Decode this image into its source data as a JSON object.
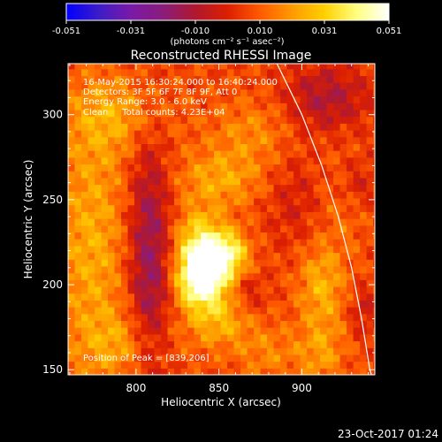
{
  "colorbar": {
    "stops": [
      "#0000ff",
      "#3b1cc8",
      "#7a1aa8",
      "#8a1c7a",
      "#b0182f",
      "#dc1f00",
      "#ff5a00",
      "#ff9a00",
      "#ffd000",
      "#ffff80",
      "#ffffff"
    ],
    "ticks": [
      "-0.051",
      "-0.031",
      "-0.010",
      "0.010",
      "0.031",
      "0.051"
    ],
    "units": "(photons cm⁻² s⁻¹ asec⁻²)"
  },
  "plot": {
    "title": "Reconstructed RHESSI Image",
    "xlabel": "Heliocentric X (arcsec)",
    "ylabel": "Heliocentric Y (arcsec)",
    "info_lines": [
      "16-May-2015 16:30:24.000 to 16:40:24.000",
      "Detectors: 3F 5F 6F 7F 8F 9F, Att 0",
      "Energy Range: 3.0 - 6.0 keV",
      "Clean     Total counts: 4.23E+04"
    ],
    "peak_label": "Position of Peak = [839,206]",
    "timestamp": "23-Oct-2017 01:24"
  },
  "chart_data": {
    "type": "heatmap",
    "title": "Reconstructed RHESSI Image",
    "xlabel": "Heliocentric X (arcsec)",
    "ylabel": "Heliocentric Y (arcsec)",
    "xlim": [
      759,
      944
    ],
    "ylim": [
      147,
      330
    ],
    "xticks": [
      800,
      850,
      900
    ],
    "yticks": [
      150,
      200,
      250,
      300
    ],
    "xtick_labels": [
      "800",
      "850",
      "900"
    ],
    "ytick_labels": [
      "150",
      "200",
      "250",
      "300"
    ],
    "colorbar_range": [
      -0.051,
      0.051
    ],
    "peak": {
      "x": 839,
      "y": 206
    },
    "limb": [
      [
        885,
        330
      ],
      [
        900,
        300
      ],
      [
        912,
        270
      ],
      [
        922,
        240
      ],
      [
        930,
        210
      ],
      [
        936,
        180
      ],
      [
        941,
        150
      ],
      [
        942,
        147
      ]
    ],
    "sources": [
      {
        "x": 839,
        "y": 205,
        "sx": 10,
        "sy": 12,
        "amp": 0.052
      },
      {
        "x": 855,
        "y": 218,
        "sx": 9,
        "sy": 10,
        "amp": 0.034
      },
      {
        "x": 838,
        "y": 228,
        "sx": 10,
        "sy": 12,
        "amp": 0.024
      },
      {
        "x": 850,
        "y": 180,
        "sx": 14,
        "sy": 12,
        "amp": 0.018
      },
      {
        "x": 850,
        "y": 262,
        "sx": 18,
        "sy": 12,
        "amp": 0.016
      },
      {
        "x": 773,
        "y": 225,
        "sx": 16,
        "sy": 55,
        "amp": 0.017
      },
      {
        "x": 790,
        "y": 300,
        "sx": 22,
        "sy": 16,
        "amp": 0.014
      },
      {
        "x": 795,
        "y": 165,
        "sx": 18,
        "sy": 14,
        "amp": 0.013
      },
      {
        "x": 870,
        "y": 290,
        "sx": 18,
        "sy": 14,
        "amp": 0.011
      },
      {
        "x": 912,
        "y": 200,
        "sx": 10,
        "sy": 18,
        "amp": 0.018
      },
      {
        "x": 912,
        "y": 160,
        "sx": 10,
        "sy": 14,
        "amp": 0.013
      },
      {
        "x": 880,
        "y": 160,
        "sx": 14,
        "sy": 12,
        "amp": 0.01
      },
      {
        "x": 927,
        "y": 255,
        "sx": 10,
        "sy": 20,
        "amp": 0.01
      },
      {
        "x": 808,
        "y": 215,
        "sx": 9,
        "sy": 55,
        "amp": -0.024
      },
      {
        "x": 915,
        "y": 310,
        "sx": 18,
        "sy": 14,
        "amp": -0.017
      },
      {
        "x": 932,
        "y": 260,
        "sx": 9,
        "sy": 12,
        "amp": -0.014
      },
      {
        "x": 868,
        "y": 195,
        "sx": 7,
        "sy": 9,
        "amp": -0.01
      },
      {
        "x": 895,
        "y": 250,
        "sx": 12,
        "sy": 20,
        "amp": -0.008
      },
      {
        "x": 937,
        "y": 185,
        "sx": 6,
        "sy": 10,
        "amp": -0.01
      }
    ]
  }
}
